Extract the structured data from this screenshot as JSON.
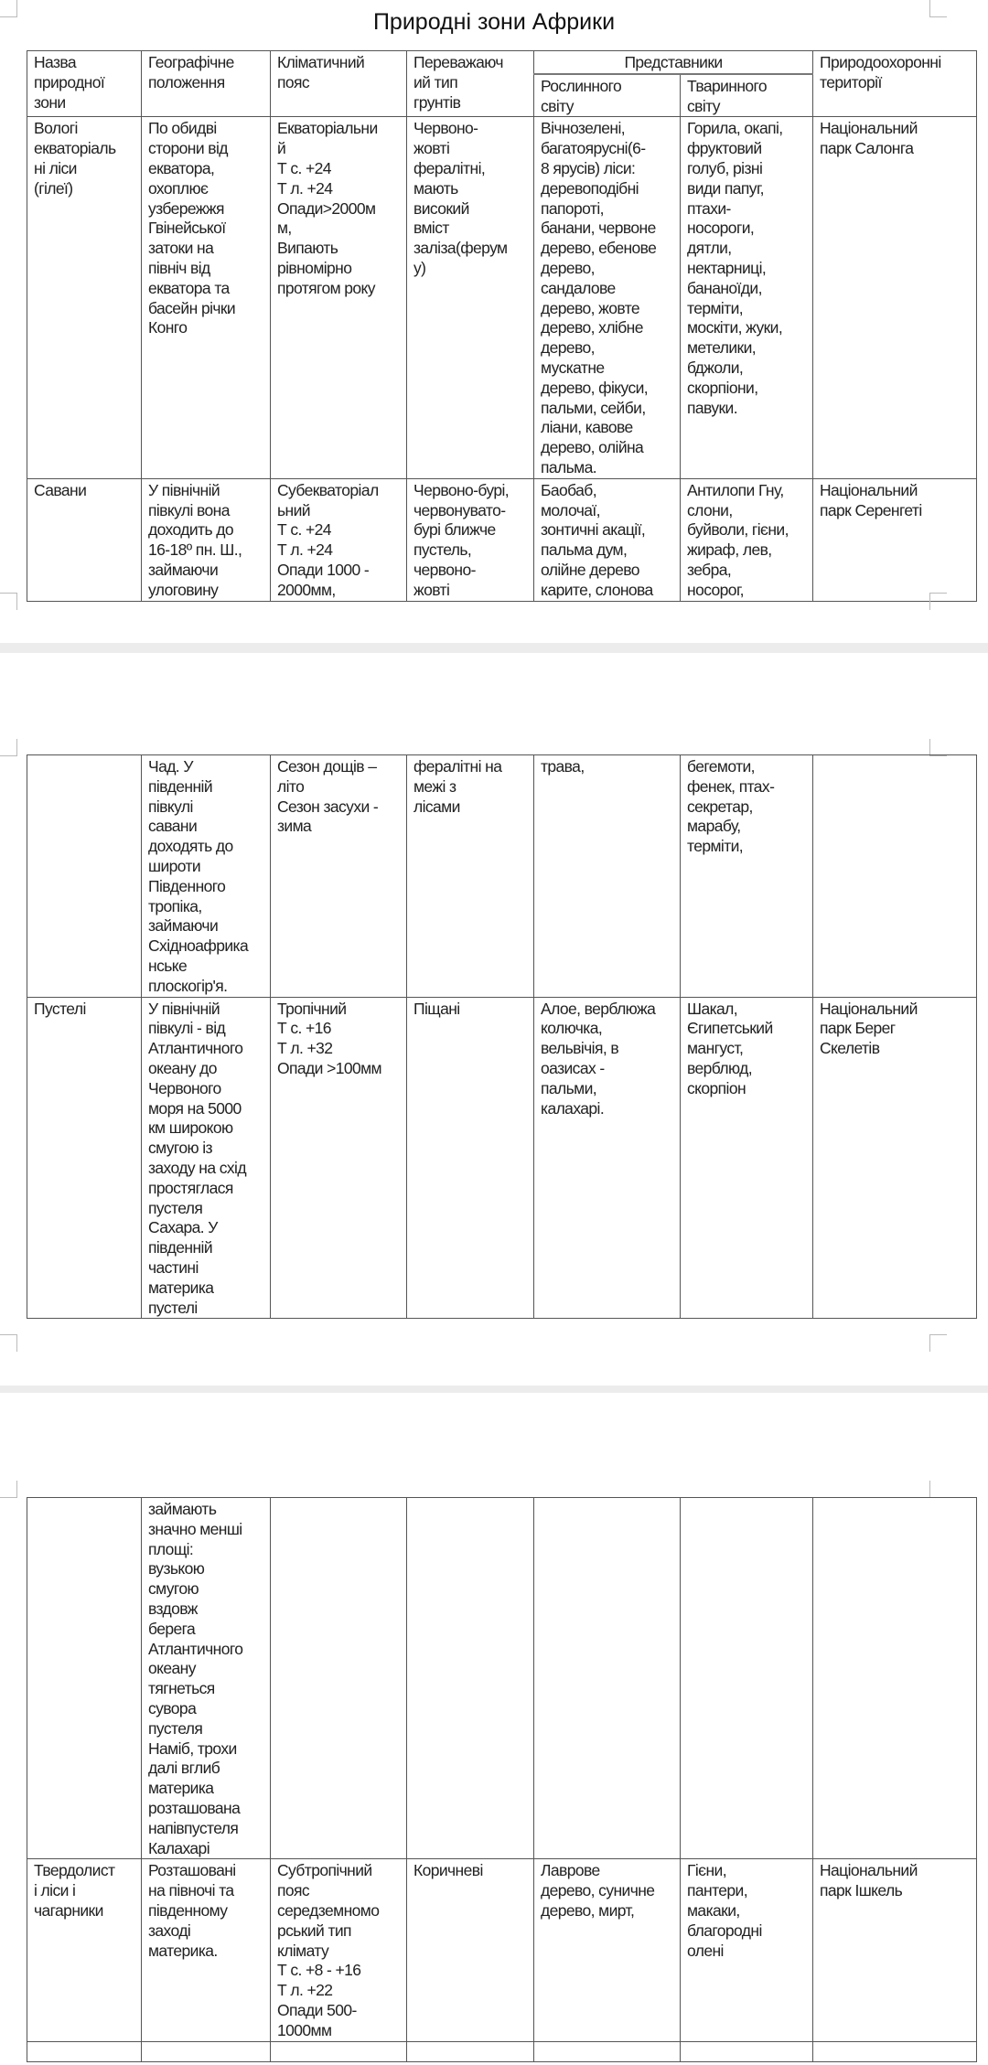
{
  "document": {
    "title": "Природні зони Африки",
    "headers": {
      "zone_name": "Назва\nприродної\nзони",
      "geo_position": "Географічне\nположення",
      "climate_belt": "Кліматичний\nпояс",
      "soil_type": "Переважаюч\nий тип\nгрунтів",
      "representatives": "Представники",
      "flora": "Рослинного\nсвіту",
      "fauna": "Тваринного\nсвіту",
      "protected_areas": "Природоохоронні\nтериторії"
    },
    "pages": [
      {
        "rows": [
          {
            "cells": [
              "Вологі\nекваторіаль\nні ліси\n(гілеї)",
              "По обидві\nсторони від\nекватора,\nохоплює\nузбережжя\nГвінейської\nзатоки на\nпівніч від\nекватора та\nбасейн річки\nКонго",
              "Екваторіальни\nй\nТ с. +24\nТ л. +24\nОпади>2000м\nм,\nВипають\nрівномірно\nпротягом року",
              "Червоно-\nжовті\nфералітні,\nмають\nвисокий\nвміст\nзаліза(ферум\nу)",
              "Вічнозелені,\nбагатоярусні(6-\n8 ярусів) ліси:\nдеревоподібні\nпапороті,\nбанани, червоне\nдерево, ебенове\nдерево,\nсандалове\nдерево, жовте\nдерево, хлібне\nдерево,\nмускатне\nдерево, фікуси,\nпальми, сейби,\nліани, кавове\nдерево, олійна\nпальма.",
              "Горила, окапі,\nфруктовий\nголуб, різні\nвиди папуг,\nптахи-\nносороги,\nдятли,\nнектарниці,\nбананоїди,\nтерміти,\nмоскіти, жуки,\nметелики,\nбджоли,\nскорпіони,\nпавуки.",
              "Національний\nпарк Салонга"
            ]
          },
          {
            "cells": [
              "Савани",
              "У північній\nпівкулі вона\nдоходить до\n16-18º пн. Ш.,\nзаймаючи\nулоговину",
              "Субекваторіал\nьний\nТ с. +24\nТ л. +24\nОпади 1000 -\n2000мм,",
              "Червоно-бурі,\nчервонувато-\nбурі ближче\nпустель,\nчервоно-\nжовті",
              "Баобаб,\nмолочаї,\nзонтичні акації,\nпальма дум,\nолійне дерево\nкарите, слонова",
              "Антилопи Гну,\nслони,\nбуйволи, гієни,\nжираф, лев,\nзебра,\nносорог,",
              "Національний\nпарк Серенгеті"
            ]
          }
        ]
      },
      {
        "rows": [
          {
            "cells": [
              "",
              "Чад. У\nпівденній\nпівкулі\nсавани\nдоходять до\nшироти\nПівденного\nтропіка,\nзаймаючи\nСхідноафрика\nнське\nплоскогір'я.",
              "Сезон дощів –\nліто\nСезон засухи -\nзима",
              "фералітні на\nмежі з\nлісами",
              "трава,",
              "бегемоти,\nфенек, птах-\nсекретар,\nмарабу,\nтерміти,",
              ""
            ]
          },
          {
            "cells": [
              "Пустелі",
              "У північній\nпівкулі - від\nАтлантичного\nокеану до\nЧервоного\nморя на 5000\nкм широкою\nсмугою із\nзаходу на схід\nпростяглася\nпустеля\nСахара. У\nпівденній\nчастині\nматерика\nпустелі",
              "Тропічний\nТ с. +16\nТ л. +32\nОпади >100мм",
              "Піщані",
              "Алое, верблюжа\nколючка,\nвельвічія, в\nоазисах -\nпальми,\nкалахарі.",
              "Шакал,\nЄгипетський\nмангуст,\nверблюд,\nскорпіон",
              "Національний\nпарк Берег\nСкелетів"
            ]
          }
        ]
      },
      {
        "rows": [
          {
            "cells": [
              "",
              "займають\nзначно менші\nплощі:\nвузькою\nсмугою\nвздовж\nберега\nАтлантичного\nокеану\nтягнеться\nсувора\nпустеля\nНаміб, трохи\nдалі вглиб\nматерика\nрозташована\nнапівпустеля\nКалахарі",
              "",
              "",
              "",
              "",
              ""
            ]
          },
          {
            "cells": [
              "Твердолист\nі ліси і\nчагарники",
              "Розташовані\nна півночі та\nпівденному\nзаході\nматерика.",
              "Субтропічний\nпояс\nсередземномо\nрський тип\nклімату\nТ с. +8 - +16\nТ л. +22\nОпади 500-\n1000мм",
              "Коричневі",
              "Лаврове\nдерево, суничне\nдерево, мирт,",
              "Гієни,\nпантери,\nмакаки,\nблагородні\nолені",
              "Національний\nпарк Ішкель"
            ]
          },
          {
            "cells": [
              "",
              "",
              "",
              "",
              "",
              "",
              ""
            ]
          }
        ]
      }
    ]
  }
}
